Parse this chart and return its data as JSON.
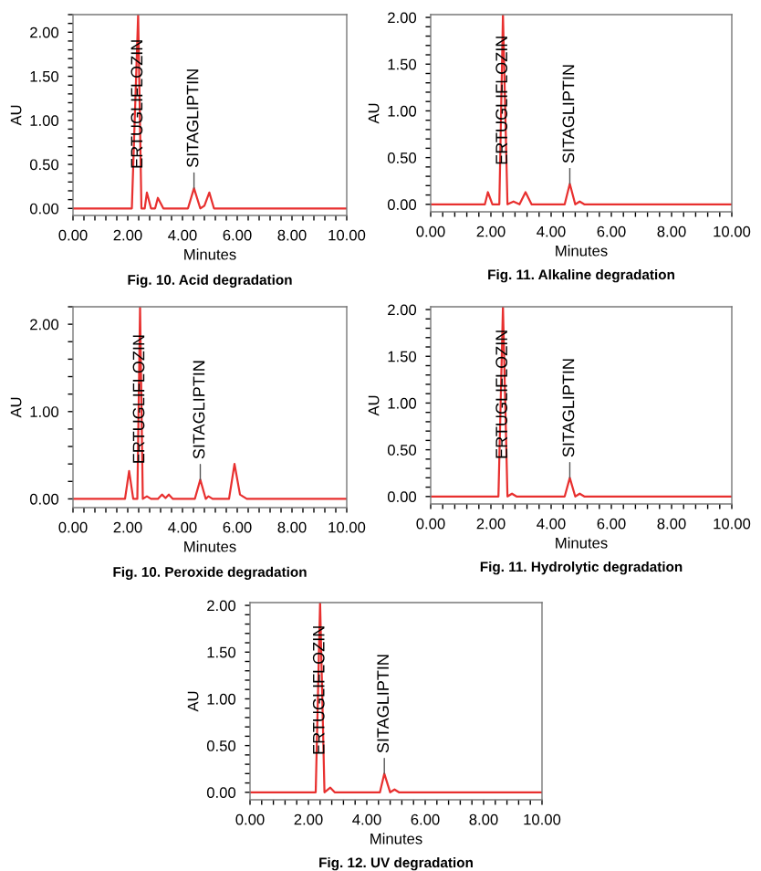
{
  "chart_data": [
    {
      "type": "line",
      "title": "Fig. 10. Acid degradation",
      "xlabel": "Minutes",
      "ylabel": "AU",
      "xlim": [
        0,
        10
      ],
      "xticks": [
        {
          "value": 0,
          "label": "0.00"
        },
        {
          "value": 2,
          "label": "2.00"
        },
        {
          "value": 4,
          "label": "4.00"
        },
        {
          "value": 6,
          "label": "6.00"
        },
        {
          "value": 8,
          "label": "8.00"
        },
        {
          "value": 10,
          "label": "10.00"
        }
      ],
      "ylim": [
        -0.08,
        2.2
      ],
      "yticks": [
        {
          "value": 0,
          "label": "0.00"
        },
        {
          "value": 0.5,
          "label": "0.50"
        },
        {
          "value": 1,
          "label": "1.00"
        },
        {
          "value": 1.5,
          "label": "1.50"
        },
        {
          "value": 2,
          "label": "2.00"
        }
      ],
      "series": [
        {
          "color": "#e8302f",
          "x": [
            0,
            2.15,
            2.38,
            2.5,
            2.62,
            2.7,
            2.85,
            3.0,
            3.1,
            3.3,
            4.2,
            4.42,
            4.65,
            4.8,
            4.98,
            5.15,
            10
          ],
          "values": [
            0,
            0,
            2.2,
            0,
            0,
            0.18,
            0,
            0,
            0.12,
            0,
            0,
            0.23,
            0,
            0.03,
            0.18,
            0,
            0
          ]
        }
      ],
      "annotations": [
        {
          "text": "ERTUGLIFLOZIN",
          "x": 2.38,
          "y": 0.45
        },
        {
          "text": "SITAGLIPTIN",
          "x": 4.42,
          "y": 0.23
        }
      ]
    },
    {
      "type": "line",
      "title": "Fig. 11. Alkaline degradation",
      "xlabel": "Minutes",
      "ylabel": "AU",
      "xlim": [
        0,
        10
      ],
      "xticks": [
        {
          "value": 0,
          "label": "0.00"
        },
        {
          "value": 2,
          "label": "2.00"
        },
        {
          "value": 4,
          "label": "4.00"
        },
        {
          "value": 6,
          "label": "6.00"
        },
        {
          "value": 8,
          "label": "8.00"
        },
        {
          "value": 10,
          "label": "10.00"
        }
      ],
      "ylim": [
        -0.08,
        2.03
      ],
      "yticks": [
        {
          "value": 0,
          "label": "0.00"
        },
        {
          "value": 0.5,
          "label": "0.50"
        },
        {
          "value": 1,
          "label": "1.00"
        },
        {
          "value": 1.5,
          "label": "1.50"
        },
        {
          "value": 2,
          "label": "2.00"
        }
      ],
      "series": [
        {
          "color": "#e8302f",
          "x": [
            0,
            1.8,
            1.9,
            2.05,
            2.28,
            2.4,
            2.55,
            2.75,
            2.95,
            3.15,
            3.35,
            4.45,
            4.62,
            4.8,
            4.95,
            5.1,
            10
          ],
          "values": [
            0,
            0,
            0.13,
            0,
            0,
            2.03,
            0,
            0.03,
            0,
            0.13,
            0,
            0,
            0.22,
            0,
            0.03,
            0,
            0
          ]
        }
      ],
      "annotations": [
        {
          "text": "ERTUGLIFLOZIN",
          "x": 2.4,
          "y": 0.42
        },
        {
          "text": "SITAGLIPTIN",
          "x": 4.62,
          "y": 0.22
        }
      ]
    },
    {
      "type": "line",
      "title": "Fig. 10. Peroxide degradation",
      "xlabel": "Minutes",
      "ylabel": "AU",
      "xlim": [
        0,
        10
      ],
      "xticks": [
        {
          "value": 0,
          "label": "0.00"
        },
        {
          "value": 2,
          "label": "2.00"
        },
        {
          "value": 4,
          "label": "4.00"
        },
        {
          "value": 6,
          "label": "6.00"
        },
        {
          "value": 8,
          "label": "8.00"
        },
        {
          "value": 10,
          "label": "10.00"
        }
      ],
      "ylim": [
        -0.1,
        2.2
      ],
      "yticks": [
        {
          "value": 0,
          "label": "0.00"
        },
        {
          "value": 1,
          "label": "1.00"
        },
        {
          "value": 2,
          "label": "2.00"
        }
      ],
      "series": [
        {
          "color": "#e8302f",
          "x": [
            0,
            1.9,
            2.05,
            2.2,
            2.35,
            2.45,
            2.55,
            2.7,
            2.85,
            3.1,
            3.25,
            3.38,
            3.5,
            3.65,
            4.45,
            4.65,
            4.85,
            4.95,
            5.1,
            5.7,
            5.9,
            6.1,
            6.2,
            6.35,
            10
          ],
          "values": [
            0,
            0,
            0.32,
            0,
            0,
            2.2,
            0,
            0.03,
            0,
            0,
            0.05,
            0.01,
            0.05,
            0,
            0,
            0.22,
            0,
            0.03,
            0,
            0,
            0.4,
            0.05,
            0.03,
            0,
            0
          ]
        }
      ],
      "annotations": [
        {
          "text": "ERTUGLIFLOZIN",
          "x": 2.45,
          "y": 0.4
        },
        {
          "text": "SITAGLIPTIN",
          "x": 4.65,
          "y": 0.22
        }
      ]
    },
    {
      "type": "line",
      "title": "Fig. 11. Hydrolytic degradation",
      "xlabel": "Minutes",
      "ylabel": "AU",
      "xlim": [
        0,
        10
      ],
      "xticks": [
        {
          "value": 0,
          "label": "0.00"
        },
        {
          "value": 2,
          "label": "2.00"
        },
        {
          "value": 4,
          "label": "4.00"
        },
        {
          "value": 6,
          "label": "6.00"
        },
        {
          "value": 8,
          "label": "8.00"
        },
        {
          "value": 10,
          "label": "10.00"
        }
      ],
      "ylim": [
        -0.08,
        2.03
      ],
      "yticks": [
        {
          "value": 0,
          "label": "0.00"
        },
        {
          "value": 0.5,
          "label": "0.50"
        },
        {
          "value": 1,
          "label": "1.00"
        },
        {
          "value": 1.5,
          "label": "1.50"
        },
        {
          "value": 2,
          "label": "2.00"
        }
      ],
      "series": [
        {
          "color": "#e8302f",
          "x": [
            0,
            2.25,
            2.4,
            2.55,
            2.7,
            2.85,
            4.45,
            4.62,
            4.8,
            4.95,
            5.1,
            10
          ],
          "values": [
            0,
            0,
            2.03,
            0,
            0.03,
            0,
            0,
            0.2,
            0,
            0.03,
            0,
            0
          ]
        }
      ],
      "annotations": [
        {
          "text": "ERTUGLIFLOZIN",
          "x": 2.4,
          "y": 0.4
        },
        {
          "text": "SITAGLIPTIN",
          "x": 4.62,
          "y": 0.2
        }
      ]
    },
    {
      "type": "line",
      "title": "Fig. 12. UV degradation",
      "xlabel": "Minutes",
      "ylabel": "AU",
      "xlim": [
        0,
        10
      ],
      "xticks": [
        {
          "value": 0,
          "label": "0.00"
        },
        {
          "value": 2,
          "label": "2.00"
        },
        {
          "value": 4,
          "label": "4.00"
        },
        {
          "value": 6,
          "label": "6.00"
        },
        {
          "value": 8,
          "label": "8.00"
        },
        {
          "value": 10,
          "label": "10.00"
        }
      ],
      "ylim": [
        -0.08,
        2.03
      ],
      "yticks": [
        {
          "value": 0,
          "label": "0.00"
        },
        {
          "value": 0.5,
          "label": "0.50"
        },
        {
          "value": 1,
          "label": "1.00"
        },
        {
          "value": 1.5,
          "label": "1.50"
        },
        {
          "value": 2,
          "label": "2.00"
        }
      ],
      "series": [
        {
          "color": "#e8302f",
          "x": [
            0,
            2.25,
            2.4,
            2.55,
            2.75,
            2.9,
            4.45,
            4.6,
            4.8,
            4.95,
            5.1,
            10
          ],
          "values": [
            0,
            0,
            2.03,
            0,
            0.05,
            0,
            0,
            0.2,
            0,
            0.03,
            0,
            0
          ]
        }
      ],
      "annotations": [
        {
          "text": "ERTUGLIFLOZIN",
          "x": 2.4,
          "y": 0.4
        },
        {
          "text": "SITAGLIPTIN",
          "x": 4.6,
          "y": 0.2
        }
      ]
    }
  ]
}
